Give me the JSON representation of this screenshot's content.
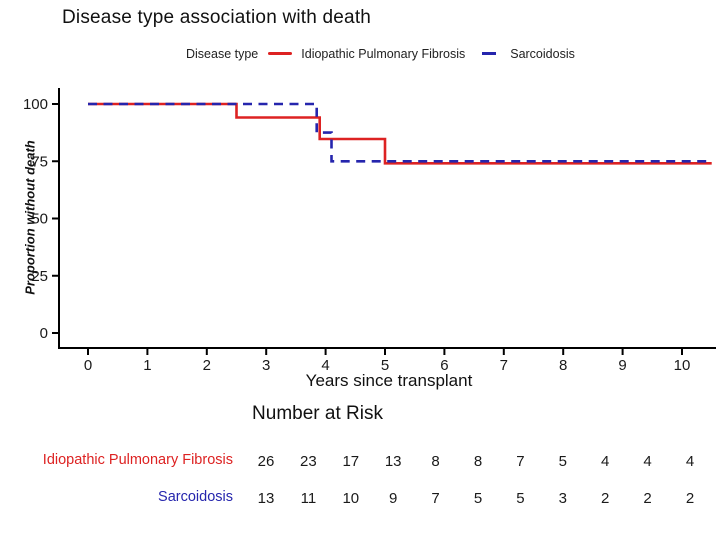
{
  "title": "Disease type association with death",
  "legend": {
    "label": "Disease type",
    "series": [
      {
        "name": "Idiopathic Pulmonary Fibrosis",
        "color": "#DD2222",
        "style": "solid"
      },
      {
        "name": "Sarcoidosis",
        "color": "#2525AD",
        "style": "dashed"
      }
    ]
  },
  "chart_data": {
    "type": "line",
    "subtype": "kaplan-meier-step-curve",
    "title": "Disease type association with death",
    "xlabel": "Years since transplant",
    "ylabel": "Proportion without death",
    "xlim": [
      -0.5,
      10.5
    ],
    "ylim": [
      0,
      100
    ],
    "x_ticks": [
      0,
      1,
      2,
      3,
      4,
      5,
      6,
      7,
      8,
      9,
      10
    ],
    "y_ticks": [
      0,
      25,
      50,
      75,
      100
    ],
    "grid": false,
    "legend_position": "top",
    "series": [
      {
        "name": "Idiopathic Pulmonary Fibrosis",
        "color": "#DD2222",
        "line_style": "solid",
        "steps": [
          [
            0,
            100
          ],
          [
            2.5,
            100
          ],
          [
            2.5,
            94.1
          ],
          [
            3.9,
            94.1
          ],
          [
            3.9,
            84.7
          ],
          [
            5.0,
            84.7
          ],
          [
            5.0,
            74.1
          ],
          [
            10.5,
            74.1
          ]
        ]
      },
      {
        "name": "Sarcoidosis",
        "color": "#2525AD",
        "line_style": "dashed",
        "steps": [
          [
            0,
            100
          ],
          [
            3.85,
            100
          ],
          [
            3.85,
            87.5
          ],
          [
            4.1,
            87.5
          ],
          [
            4.1,
            75
          ],
          [
            10.5,
            75
          ]
        ]
      }
    ]
  },
  "risk_table": {
    "title": "Number at Risk",
    "time_points": [
      0,
      1,
      2,
      3,
      4,
      5,
      6,
      7,
      8,
      9,
      10
    ],
    "rows": [
      {
        "label": "Idiopathic Pulmonary Fibrosis",
        "color": "#DD2222",
        "values": [
          26,
          23,
          17,
          13,
          8,
          8,
          7,
          5,
          4,
          4,
          4
        ]
      },
      {
        "label": "Sarcoidosis",
        "color": "#2525AD",
        "values": [
          13,
          11,
          10,
          9,
          7,
          5,
          5,
          3,
          2,
          2,
          2
        ]
      }
    ]
  }
}
